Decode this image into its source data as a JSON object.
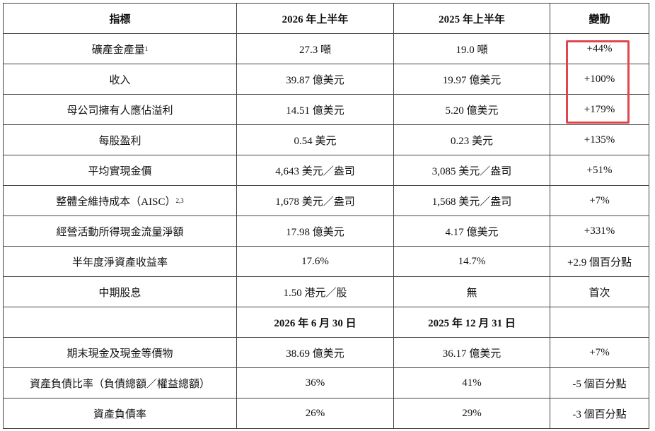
{
  "table": {
    "header": [
      "指標",
      "2026 年上半年",
      "2025 年上半年",
      "變動"
    ],
    "rows": [
      {
        "cells": [
          "礦產金產量",
          "27.3 噸",
          "19.0 噸",
          "+44%"
        ],
        "sup": "1"
      },
      {
        "cells": [
          "收入",
          "39.87 億美元",
          "19.97 億美元",
          "+100%"
        ]
      },
      {
        "cells": [
          "母公司擁有人應佔溢利",
          "14.51 億美元",
          "5.20 億美元",
          "+179%"
        ]
      },
      {
        "cells": [
          "每股盈利",
          "0.54 美元",
          "0.23 美元",
          "+135%"
        ]
      },
      {
        "cells": [
          "平均實現金價",
          "4,643 美元／盎司",
          "3,085 美元／盎司",
          "+51%"
        ]
      },
      {
        "cells": [
          "整體全維持成本（AISC）",
          "1,678 美元／盎司",
          "1,568 美元／盎司",
          "+7%"
        ],
        "sup": "2,3"
      },
      {
        "cells": [
          "經營活動所得現金流量淨額",
          "17.98 億美元",
          "4.17 億美元",
          "+331%"
        ]
      },
      {
        "cells": [
          "半年度淨資產收益率",
          "17.6%",
          "14.7%",
          "+2.9 個百分點"
        ]
      },
      {
        "cells": [
          "中期股息",
          "1.50 港元／股",
          "無",
          "首次"
        ]
      }
    ],
    "subheader": [
      "2026 年 6 月 30 日",
      "2025 年 12 月 31 日"
    ],
    "rows2": [
      {
        "cells": [
          "期末現金及現金等價物",
          "38.69 億美元",
          "36.17 億美元",
          "+7%"
        ]
      },
      {
        "cells": [
          "資產負債比率（負債總額／權益總額）",
          "36%",
          "41%",
          "-5 個百分點"
        ]
      },
      {
        "cells": [
          "資產負債率",
          "26%",
          "29%",
          "-3 個百分點"
        ]
      }
    ]
  }
}
